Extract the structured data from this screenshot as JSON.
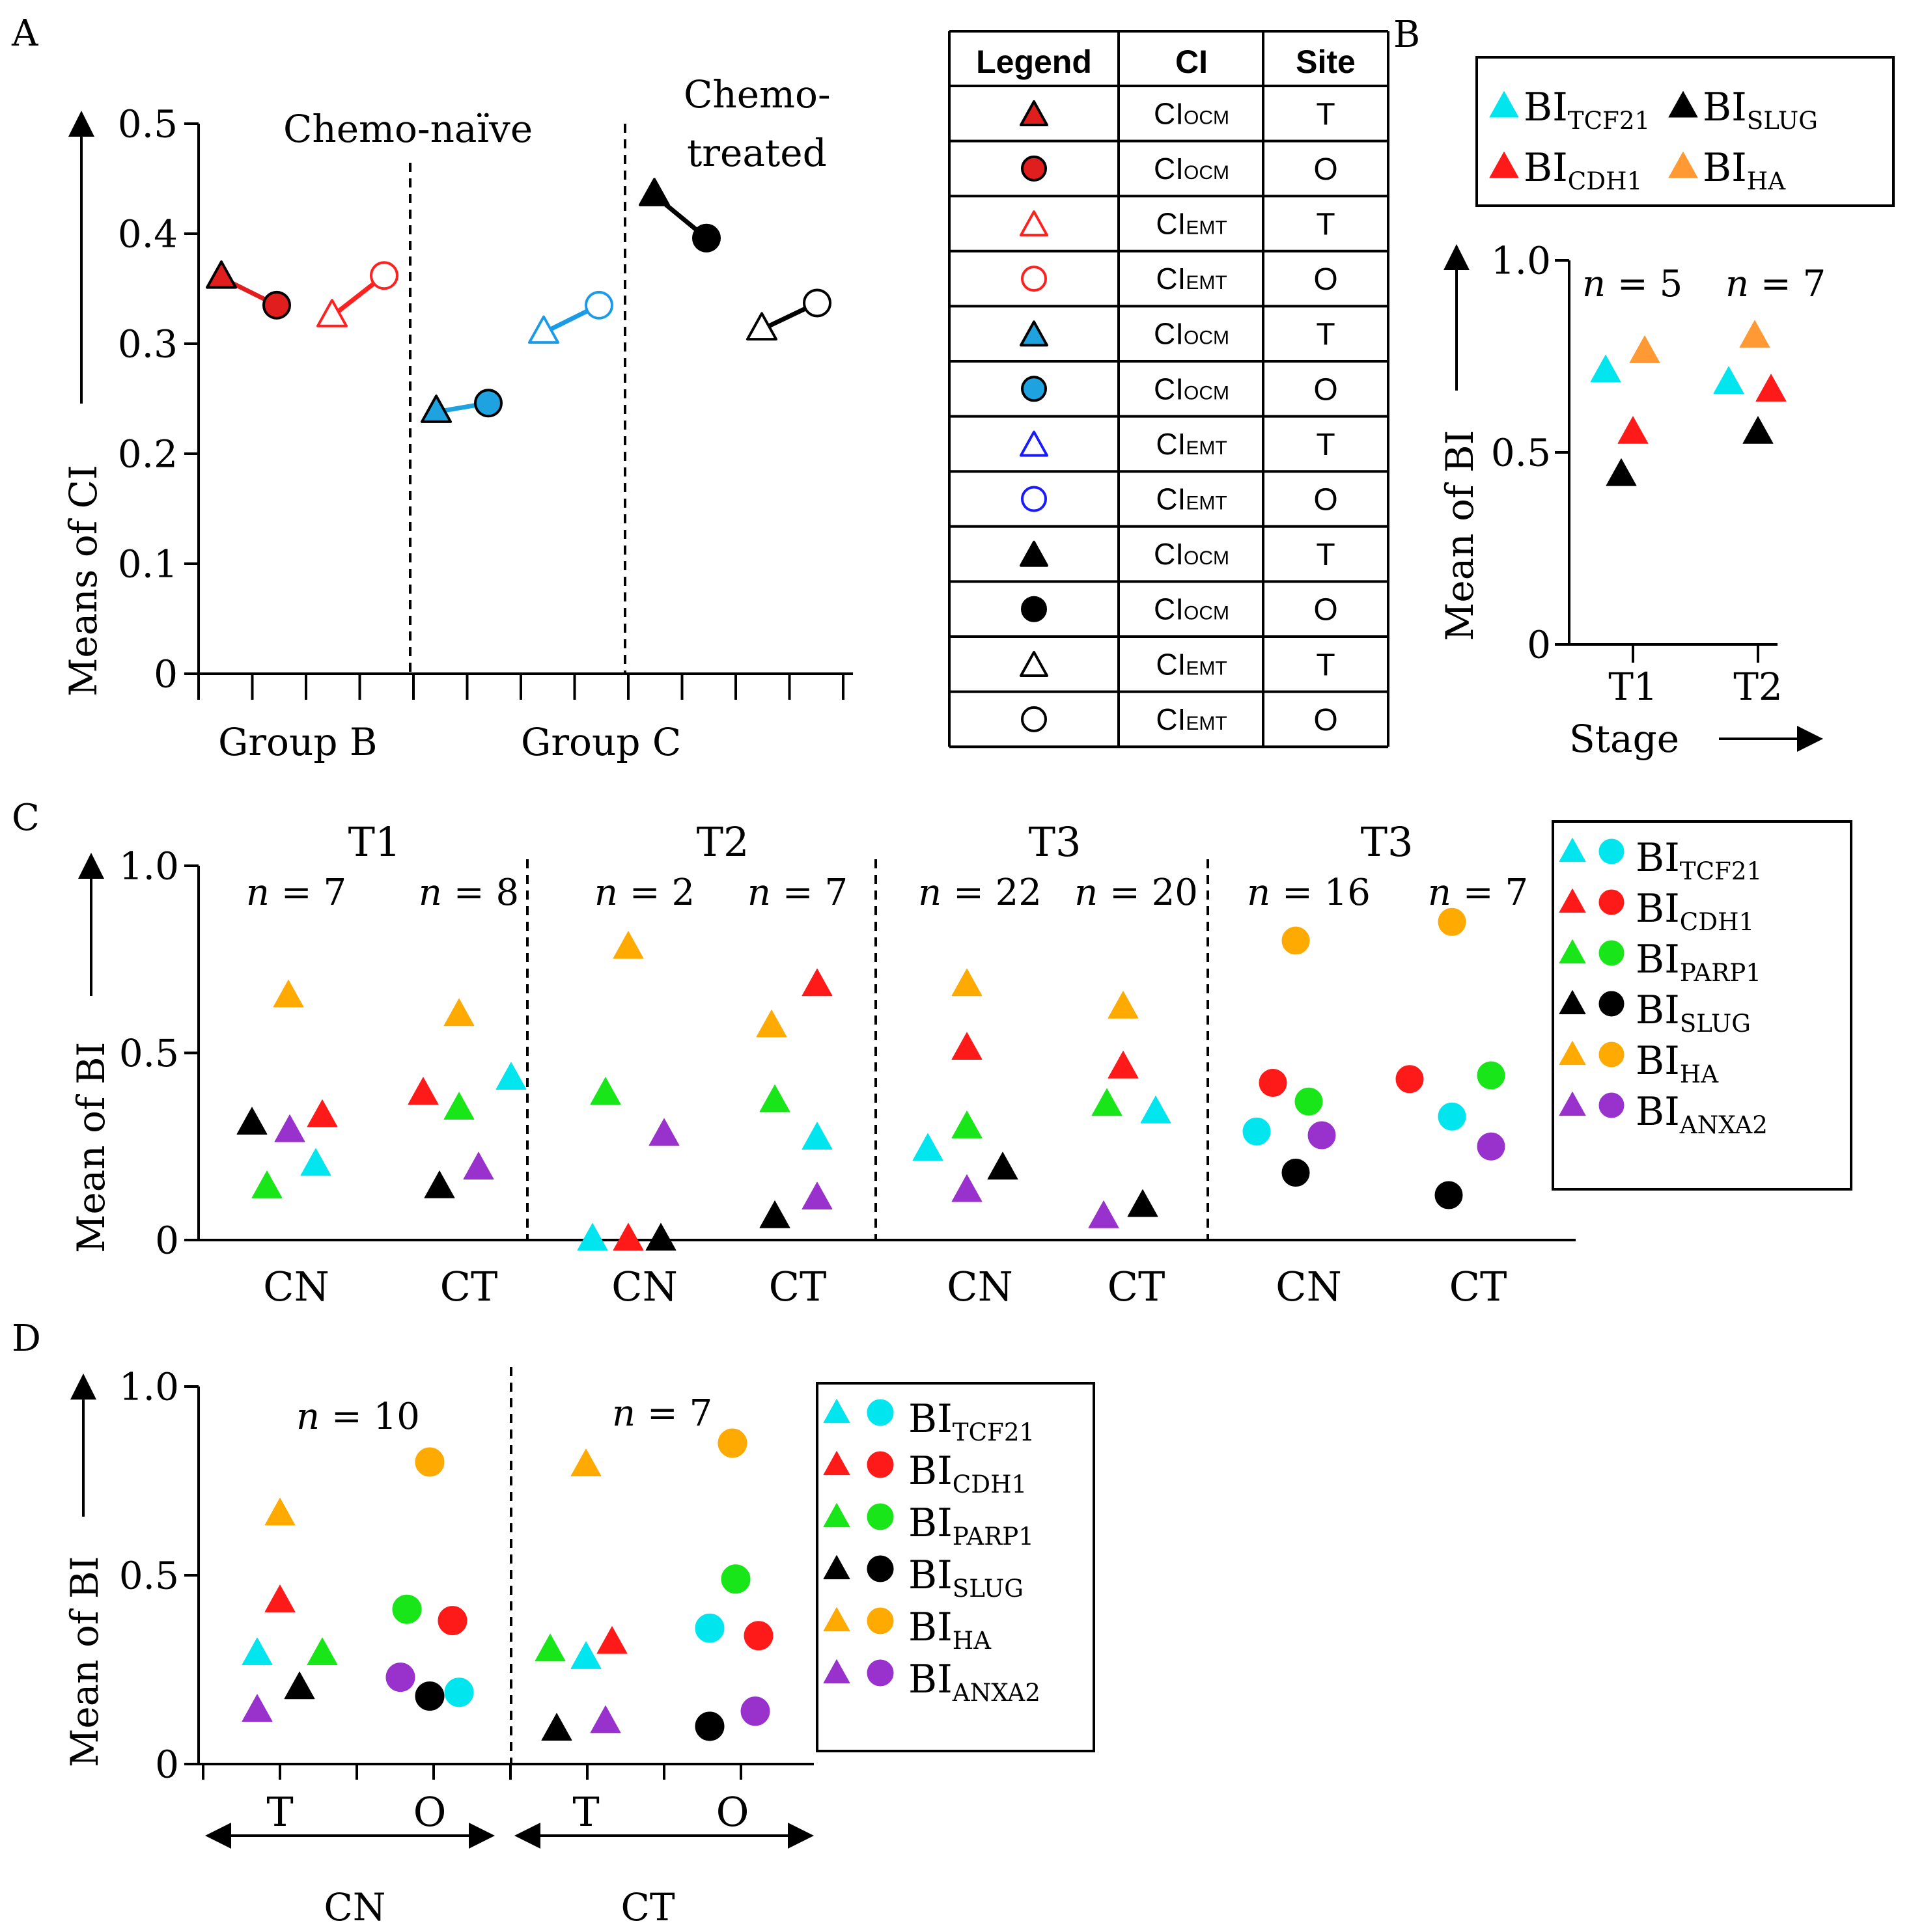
{
  "panels": {
    "A": {
      "letter": "A",
      "section_labels": [
        "Chemo-naïve",
        "Chemo-",
        "treated"
      ],
      "group_labels": [
        "Group B",
        "Group C"
      ],
      "ylabel": "Means of CI",
      "yticks": [
        "0",
        "0.1",
        "0.2",
        "0.3",
        "0.4",
        "0.5"
      ]
    },
    "B": {
      "letter": "B",
      "ylabel": "Mean of BI",
      "xlabel": "Stage",
      "n_labels": [
        "n = 5",
        "n = 7"
      ],
      "yticks": [
        "0",
        "0.5",
        "1.0"
      ],
      "xticks": [
        "T1",
        "T2"
      ]
    },
    "C": {
      "letter": "C",
      "ylabel": "Mean of BI",
      "yticks": [
        "0",
        "0.5",
        "1.0"
      ],
      "stage_labels": [
        "T1",
        "T2",
        "T3",
        "T3"
      ],
      "n_labels": [
        "n = 7",
        "n = 8",
        "n = 2",
        "n = 7",
        "n = 22",
        "n = 20",
        "n = 16",
        "n = 7"
      ],
      "xticks": [
        "CN",
        "CT",
        "CN",
        "CT",
        "CN",
        "CT",
        "CN",
        "CT"
      ]
    },
    "D": {
      "letter": "D",
      "ylabel": "Mean of BI",
      "yticks": [
        "0",
        "0.5",
        "1.0"
      ],
      "n_labels": [
        "n = 10",
        "n = 7"
      ],
      "xticks": [
        "T",
        "O",
        "T",
        "O"
      ],
      "group_labels": [
        "CN",
        "CT"
      ]
    }
  },
  "legend_table": {
    "headers": [
      "Legend",
      "CI",
      "Site"
    ],
    "rows": [
      {
        "symbol": "triangle",
        "fill": "#e01e1e",
        "stroke": "#000000",
        "ci": "CIOCM",
        "site": "T"
      },
      {
        "symbol": "circle",
        "fill": "#e01e1e",
        "stroke": "#000000",
        "ci": "CIOCM",
        "site": "O"
      },
      {
        "symbol": "triangle",
        "fill": "none",
        "stroke": "#ff2020",
        "ci": "CIEMT",
        "site": "T"
      },
      {
        "symbol": "circle",
        "fill": "none",
        "stroke": "#ff2020",
        "ci": "CIEMT",
        "site": "O"
      },
      {
        "symbol": "triangle",
        "fill": "#1fa3e0",
        "stroke": "#000000",
        "ci": "CIOCM",
        "site": "T"
      },
      {
        "symbol": "circle",
        "fill": "#1fa3e0",
        "stroke": "#000000",
        "ci": "CIOCM",
        "site": "O"
      },
      {
        "symbol": "triangle",
        "fill": "none",
        "stroke": "#1a1aff",
        "ci": "CIEMT",
        "site": "T"
      },
      {
        "symbol": "circle",
        "fill": "none",
        "stroke": "#1a1aff",
        "ci": "CIEMT",
        "site": "O"
      },
      {
        "symbol": "triangle",
        "fill": "#000000",
        "stroke": "#000000",
        "ci": "CIOCM",
        "site": "T"
      },
      {
        "symbol": "circle",
        "fill": "#000000",
        "stroke": "#000000",
        "ci": "CIOCM",
        "site": "O"
      },
      {
        "symbol": "triangle",
        "fill": "none",
        "stroke": "#000000",
        "ci": "CIEMT",
        "site": "T"
      },
      {
        "symbol": "circle",
        "fill": "none",
        "stroke": "#000000",
        "ci": "CIEMT",
        "site": "O"
      }
    ]
  },
  "legend_B": {
    "entries": [
      {
        "label": "BITCF21",
        "color": "#00e5ee"
      },
      {
        "label": "BISlug",
        "color": "#000000"
      },
      {
        "label": "BICDH1",
        "color": "#ff1a1a"
      },
      {
        "label": "BIHA",
        "color": "#ff9933"
      }
    ]
  },
  "legend_CD": {
    "entries": [
      {
        "label": "BITCF21",
        "color": "#00e5ee"
      },
      {
        "label": "BICDH1",
        "color": "#ff1a1a"
      },
      {
        "label": "BIPARP1",
        "color": "#19e619"
      },
      {
        "label": "BISlug",
        "color": "#000000"
      },
      {
        "label": "BIHA",
        "color": "#ffaa00"
      },
      {
        "label": "BIANXA2",
        "color": "#9932cc"
      }
    ]
  },
  "chart_data": [
    {
      "panel": "A",
      "type": "scatter",
      "ylabel": "Means of CI",
      "ylim": [
        0,
        0.5
      ],
      "series": [
        {
          "ci": "CIOCM",
          "color": "#e01e1e",
          "filled": true,
          "values": {
            "T": 0.36,
            "O": 0.335
          }
        },
        {
          "ci": "CIEMT",
          "color": "#ff2020",
          "filled": false,
          "values": {
            "T": 0.325,
            "O": 0.362
          }
        },
        {
          "ci": "CIOCM",
          "color": "#1fa3e0",
          "filled": true,
          "values": {
            "T": 0.238,
            "O": 0.246
          }
        },
        {
          "ci": "CIEMT",
          "color": "#1a9be8",
          "filled": false,
          "values": {
            "T": 0.31,
            "O": 0.335
          }
        },
        {
          "ci": "CIOCM",
          "color": "#000000",
          "filled": true,
          "values": {
            "T": 0.435,
            "O": 0.396
          }
        },
        {
          "ci": "CIEMT",
          "color": "#000000",
          "filled": false,
          "values": {
            "T": 0.313,
            "O": 0.337
          }
        }
      ]
    },
    {
      "panel": "B",
      "type": "scatter",
      "xlabel": "Stage",
      "ylabel": "Mean of BI",
      "ylim": [
        0,
        1.0
      ],
      "categories": [
        "T1",
        "T2"
      ],
      "series": [
        {
          "name": "BITCF21",
          "color": "#00e5ee",
          "values": [
            0.71,
            0.68
          ]
        },
        {
          "name": "BICDH1",
          "color": "#ff1a1a",
          "values": [
            0.55,
            0.66
          ]
        },
        {
          "name": "BISlug",
          "color": "#000000",
          "values": [
            0.44,
            0.55
          ]
        },
        {
          "name": "BIHA",
          "color": "#ff9933",
          "values": [
            0.76,
            0.8
          ]
        }
      ]
    },
    {
      "panel": "C",
      "type": "scatter",
      "ylabel": "Mean of BI",
      "ylim": [
        0,
        1.0
      ],
      "categories": [
        "T1 CN",
        "T1 CT",
        "T2 CN",
        "T2 CT",
        "T3 CN",
        "T3 CT",
        "T3 CN (O)",
        "T3 CT (O)"
      ],
      "series": [
        {
          "name": "BITCF21",
          "color": "#00e5ee",
          "values": [
            0.2,
            0.43,
            0.0,
            0.27,
            0.24,
            0.34,
            0.29,
            0.33
          ]
        },
        {
          "name": "BICDH1",
          "color": "#ff1a1a",
          "values": [
            0.33,
            0.39,
            0.0,
            0.68,
            0.51,
            0.46,
            0.42,
            0.43
          ]
        },
        {
          "name": "BIPARP1",
          "color": "#19e619",
          "values": [
            0.14,
            0.35,
            0.39,
            0.37,
            0.3,
            0.36,
            0.37,
            0.44
          ]
        },
        {
          "name": "BISlug",
          "color": "#000000",
          "values": [
            0.31,
            0.14,
            0.0,
            0.06,
            0.19,
            0.09,
            0.18,
            0.12
          ]
        },
        {
          "name": "BIHA",
          "color": "#ffaa00",
          "values": [
            0.65,
            0.6,
            0.78,
            0.57,
            0.68,
            0.62,
            0.8,
            0.85
          ]
        },
        {
          "name": "BIANXA2",
          "color": "#9932cc",
          "values": [
            0.29,
            0.19,
            0.28,
            0.11,
            0.13,
            0.06,
            0.28,
            0.25
          ]
        }
      ]
    },
    {
      "panel": "D",
      "type": "scatter",
      "ylabel": "Mean of BI",
      "ylim": [
        0,
        1.0
      ],
      "categories": [
        "CN T",
        "CN O",
        "CT T",
        "CT O"
      ],
      "series": [
        {
          "name": "BITCF21",
          "color": "#00e5ee",
          "values": [
            0.29,
            0.19,
            0.28,
            0.36
          ]
        },
        {
          "name": "BICDH1",
          "color": "#ff1a1a",
          "values": [
            0.43,
            0.38,
            0.32,
            0.34
          ]
        },
        {
          "name": "BIPARP1",
          "color": "#19e619",
          "values": [
            0.29,
            0.41,
            0.3,
            0.49
          ]
        },
        {
          "name": "BISlug",
          "color": "#000000",
          "values": [
            0.2,
            0.18,
            0.09,
            0.1
          ]
        },
        {
          "name": "BIHA",
          "color": "#ffaa00",
          "values": [
            0.66,
            0.8,
            0.79,
            0.85
          ]
        },
        {
          "name": "BIANXA2",
          "color": "#9932cc",
          "values": [
            0.14,
            0.23,
            0.11,
            0.14
          ]
        }
      ]
    }
  ]
}
